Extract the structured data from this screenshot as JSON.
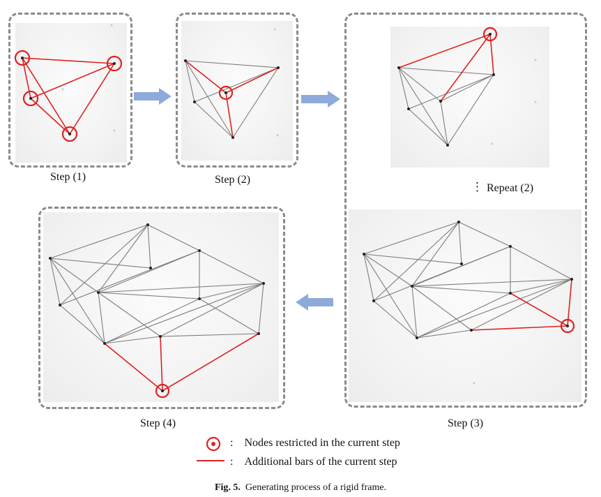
{
  "steps": {
    "step1": "Step (1)",
    "step2": "Step (2)",
    "repeat": "Repeat (2)",
    "repeat_marker": "⋮",
    "step3": "Step (3)",
    "step4": "Step (4)"
  },
  "legend": {
    "separator": ":",
    "nodes": "Nodes restricted in the current step",
    "bars": "Additional bars of the current step"
  },
  "caption": {
    "prefix": "Fig. 5.",
    "text": "Generating process of a rigid frame."
  },
  "colors": {
    "highlight": "#e02020",
    "bar": "#7d7d7d",
    "arrow": "#8eaadb",
    "panel_border": "#8a8a8a"
  }
}
